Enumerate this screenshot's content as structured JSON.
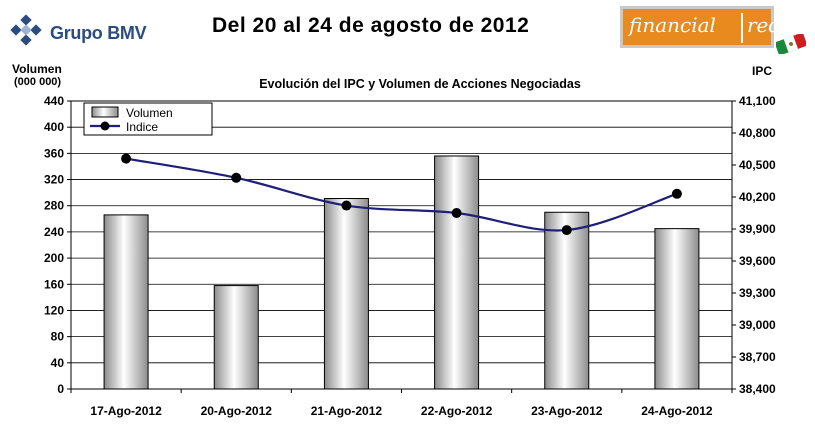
{
  "header": {
    "title": "Del 20 al 24 de agosto de 2012",
    "logo_left": "Grupo BMV",
    "logo_right_a": "financial",
    "logo_right_b": "red"
  },
  "colors": {
    "line": "#1f1f7a",
    "bar_light": "#ffffff",
    "bar_dark": "#8c8c8c",
    "logo_orange": "#e98a1f",
    "logo_blue": "#2b4c7e"
  },
  "chart_data": {
    "type": "bar",
    "title": "Evolución del IPC y Volumen de Acciones Negociadas",
    "ylabel": "Volumen",
    "ylabel_sub": "(000 000)",
    "y2label": "IPC",
    "categories": [
      "17-Ago-2012",
      "20-Ago-2012",
      "21-Ago-2012",
      "22-Ago-2012",
      "23-Ago-2012",
      "24-Ago-2012"
    ],
    "ylim": [
      0,
      440
    ],
    "yticks": [
      0,
      40,
      80,
      120,
      160,
      200,
      240,
      280,
      320,
      360,
      400,
      440
    ],
    "y2lim": [
      38400,
      41100
    ],
    "y2ticks": [
      "38,400",
      "38,700",
      "39,000",
      "39,300",
      "39,600",
      "39,900",
      "40,200",
      "40,500",
      "40,800",
      "41,100"
    ],
    "y2tick_values": [
      38400,
      38700,
      39000,
      39300,
      39600,
      39900,
      40200,
      40500,
      40800,
      41100
    ],
    "grid": true,
    "legend_position": "top-left",
    "series": [
      {
        "name": "Volumen",
        "type": "bar",
        "axis": "left",
        "values": [
          266,
          158,
          291,
          356,
          270,
          245
        ]
      },
      {
        "name": "Indice",
        "type": "line",
        "axis": "right",
        "values": [
          40560,
          40380,
          40120,
          40050,
          39890,
          40230
        ]
      }
    ]
  }
}
